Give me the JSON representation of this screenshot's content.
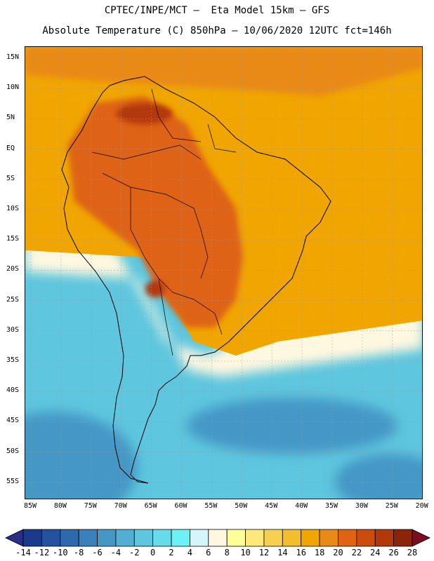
{
  "title_line1": "CPTEC/INPE/MCT –  Eta Model 15km – GFS",
  "title_line2": "Absolute Temperature (C) 850hPa – 10/06/2020 12UTC fct=146h",
  "lat_labels": [
    "15N",
    "10N",
    "5N",
    "EQ",
    "5S",
    "10S",
    "15S",
    "20S",
    "25S",
    "30S",
    "35S",
    "40S",
    "45S",
    "50S",
    "55S"
  ],
  "lon_labels": [
    "85W",
    "80W",
    "75W",
    "70W",
    "65W",
    "60W",
    "55W",
    "50W",
    "45W",
    "40W",
    "35W",
    "30W",
    "25W",
    "20W"
  ],
  "colorbar": {
    "labels": [
      "-14",
      "-12",
      "-10",
      "-8",
      "-6",
      "-4",
      "-2",
      "0",
      "2",
      "4",
      "6",
      "8",
      "10",
      "12",
      "14",
      "16",
      "18",
      "20",
      "22",
      "24",
      "26",
      "28"
    ],
    "colors": [
      "#1a3a8c",
      "#2452a0",
      "#2e68ad",
      "#3a80bb",
      "#4598c6",
      "#52aed2",
      "#5ec6de",
      "#66dcea",
      "#6cf2f5",
      "#d4f6fa",
      "#fff8e0",
      "#ffff9a",
      "#fde97a",
      "#f8d050",
      "#f3bd2e",
      "#f0a500",
      "#ea8a16",
      "#de6412",
      "#cc4c0c",
      "#b2380a",
      "#8c2408"
    ],
    "under_color": "#2a2e8a",
    "over_color": "#7a0e20"
  },
  "palette": {
    "ocean_south": "#5ec6de",
    "ocean_south_deep": "#4598c6",
    "tropical_ocean": "#f0a500",
    "warm_ocean": "#ea8a16",
    "land_hot": "#de6412",
    "land_hottest": "#b2380a",
    "coast_pale": "#fff8e0",
    "coastline": "#000000"
  }
}
